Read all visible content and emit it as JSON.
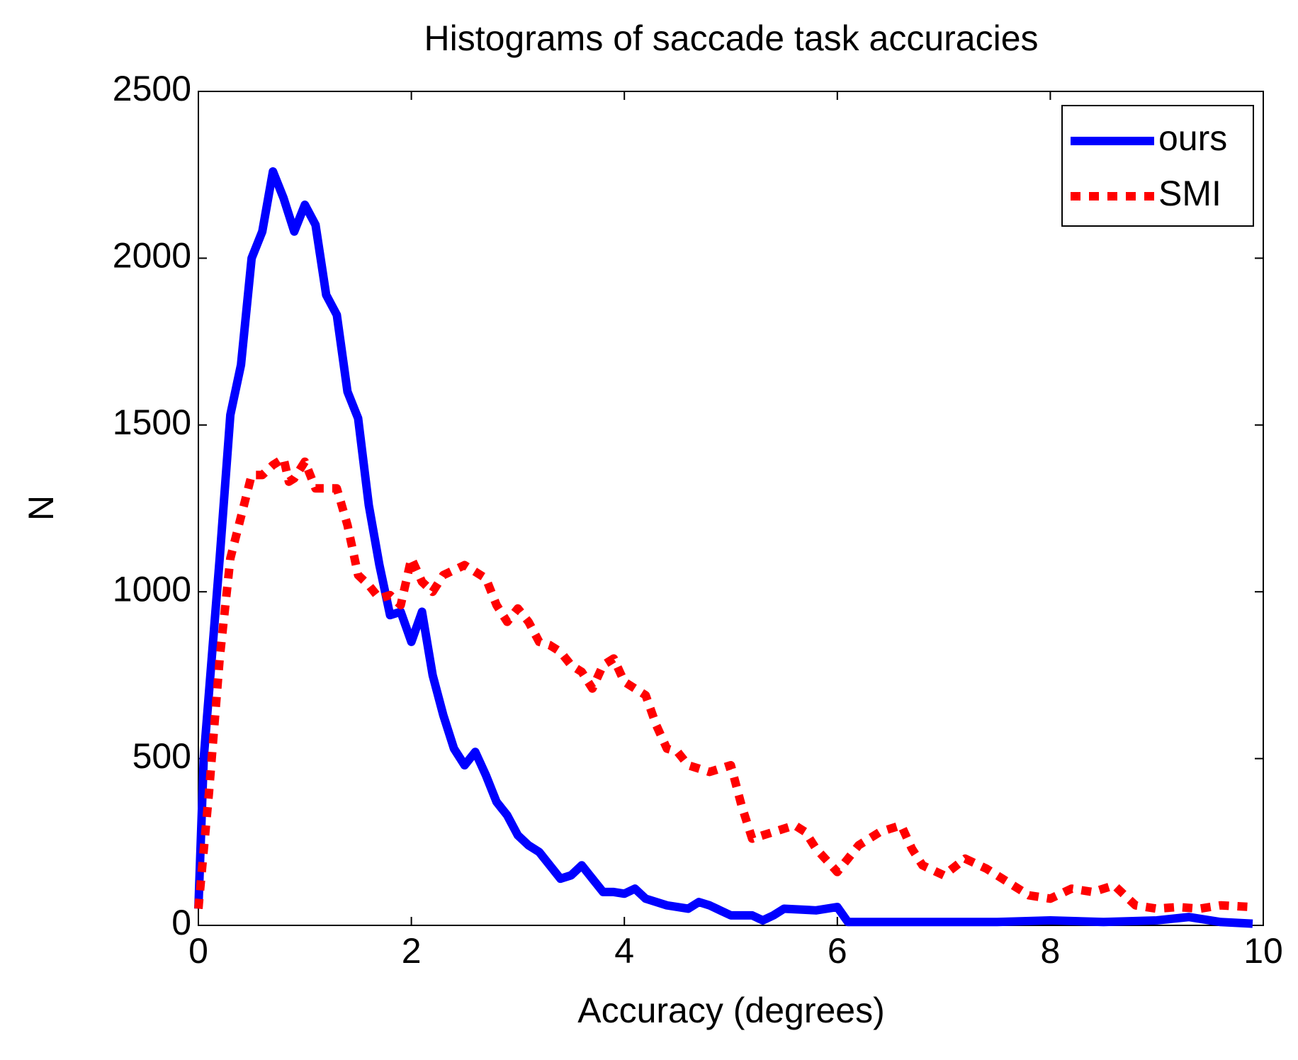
{
  "chart_data": {
    "type": "line",
    "title": "Histograms of saccade task accuracies",
    "x_label": "Accuracy (degrees)",
    "y_label": "N",
    "xlim": [
      0,
      10
    ],
    "xticks": [
      0,
      2,
      4,
      6,
      8,
      10
    ],
    "ylim": [
      0,
      2500
    ],
    "yticks": [
      0,
      500,
      1000,
      1500,
      2000,
      2500
    ],
    "legend": "upper right",
    "series": [
      {
        "name": "ours",
        "color": "#0000ff",
        "style": "solid",
        "x": [
          0,
          0.05,
          0.2,
          0.3,
          0.4,
          0.5,
          0.6,
          0.7,
          0.8,
          0.9,
          1.0,
          1.1,
          1.2,
          1.3,
          1.4,
          1.5,
          1.6,
          1.7,
          1.8,
          1.9,
          2.0,
          2.1,
          2.2,
          2.3,
          2.4,
          2.5,
          2.6,
          2.7,
          2.8,
          2.9,
          3.0,
          3.1,
          3.2,
          3.3,
          3.4,
          3.5,
          3.6,
          3.7,
          3.8,
          3.9,
          4.0,
          4.1,
          4.2,
          4.4,
          4.6,
          4.7,
          4.8,
          5.0,
          5.2,
          5.3,
          5.4,
          5.5,
          5.8,
          5.9,
          6.0,
          6.1,
          6.5,
          7.0,
          7.5,
          8.0,
          8.5,
          9.0,
          9.3,
          9.6,
          9.9
        ],
        "values": [
          50,
          500,
          1100,
          1530,
          1680,
          2000,
          2080,
          2260,
          2180,
          2080,
          2160,
          2100,
          1890,
          1830,
          1600,
          1520,
          1260,
          1080,
          930,
          940,
          850,
          940,
          750,
          630,
          530,
          480,
          520,
          450,
          370,
          330,
          270,
          240,
          220,
          180,
          140,
          150,
          180,
          140,
          100,
          100,
          95,
          110,
          80,
          60,
          50,
          70,
          60,
          30,
          30,
          15,
          30,
          50,
          45,
          50,
          55,
          10,
          10,
          10,
          10,
          15,
          10,
          15,
          25,
          10,
          5
        ]
      },
      {
        "name": "SMI",
        "color": "#ff0000",
        "style": "dotted",
        "x": [
          0,
          0.1,
          0.2,
          0.3,
          0.5,
          0.6,
          0.7,
          0.8,
          0.85,
          0.9,
          1.0,
          1.1,
          1.3,
          1.4,
          1.5,
          1.6,
          1.7,
          1.8,
          1.9,
          2.0,
          2.1,
          2.2,
          2.3,
          2.5,
          2.7,
          2.8,
          2.9,
          3.0,
          3.1,
          3.2,
          3.3,
          3.4,
          3.5,
          3.6,
          3.7,
          3.8,
          3.9,
          4.0,
          4.2,
          4.3,
          4.4,
          4.5,
          4.6,
          4.8,
          5.0,
          5.1,
          5.2,
          5.4,
          5.6,
          5.7,
          5.8,
          6.0,
          6.1,
          6.2,
          6.4,
          6.6,
          6.7,
          6.8,
          7.0,
          7.2,
          7.4,
          7.6,
          7.8,
          8.0,
          8.2,
          8.4,
          8.6,
          8.8,
          9.0,
          9.2,
          9.4,
          9.6,
          9.9
        ],
        "values": [
          50,
          400,
          800,
          1100,
          1350,
          1350,
          1380,
          1400,
          1330,
          1340,
          1390,
          1310,
          1310,
          1200,
          1050,
          1020,
          980,
          990,
          960,
          1100,
          1030,
          1000,
          1050,
          1080,
          1040,
          960,
          910,
          950,
          910,
          850,
          840,
          820,
          780,
          760,
          710,
          780,
          800,
          730,
          690,
          600,
          530,
          520,
          480,
          460,
          480,
          360,
          260,
          280,
          300,
          280,
          230,
          160,
          200,
          240,
          280,
          300,
          230,
          180,
          150,
          200,
          170,
          130,
          90,
          80,
          110,
          100,
          120,
          60,
          50,
          55,
          50,
          60,
          55
        ]
      }
    ]
  }
}
